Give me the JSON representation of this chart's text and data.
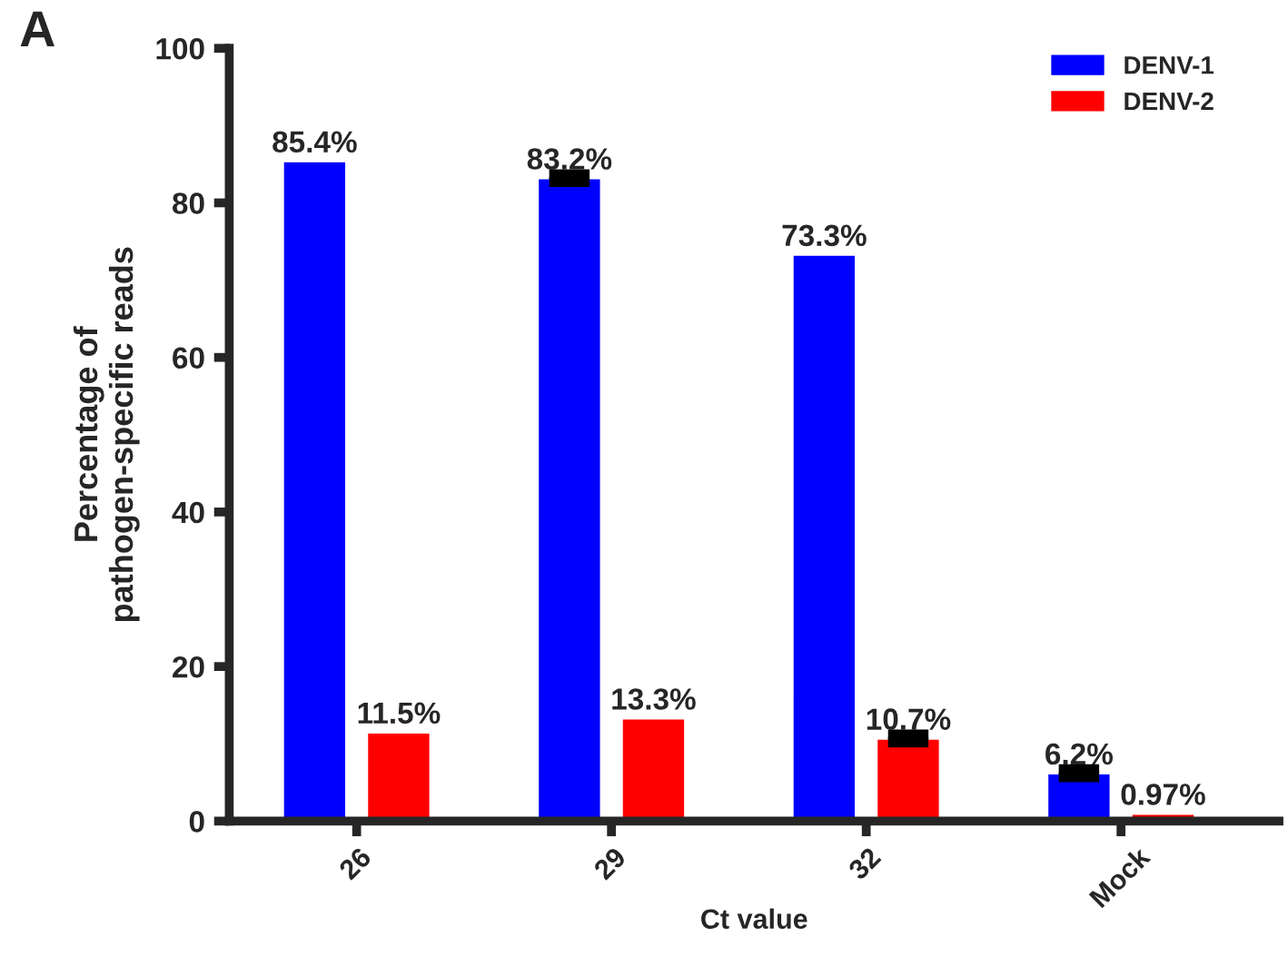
{
  "chart_data": {
    "type": "bar",
    "xlabel": "Ct value",
    "ylabel": "Percentage of\npathogen-specific reads",
    "annotations": [
      "A"
    ],
    "categories": [
      "26",
      "29",
      "32",
      "Mock"
    ],
    "series": [
      {
        "name": "DENV-1",
        "color": "#0000ff",
        "values": [
          85.4,
          83.2,
          73.3,
          6.2
        ],
        "value_labels": [
          "85.4%",
          "83.2%",
          "73.3%",
          "6.2%"
        ],
        "errors": [
          null,
          0.5,
          null,
          0.5
        ]
      },
      {
        "name": "DENV-2",
        "color": "#ff0000",
        "values": [
          11.5,
          13.3,
          10.7,
          0.97
        ],
        "value_labels": [
          "11.5%",
          "13.3%",
          "10.7%",
          "0.97%"
        ],
        "errors": [
          null,
          null,
          0.5,
          null
        ]
      }
    ],
    "ylim": [
      0,
      100
    ],
    "yticks": [
      0,
      20,
      40,
      60,
      80,
      100
    ],
    "grid": false,
    "legend": "top right"
  }
}
